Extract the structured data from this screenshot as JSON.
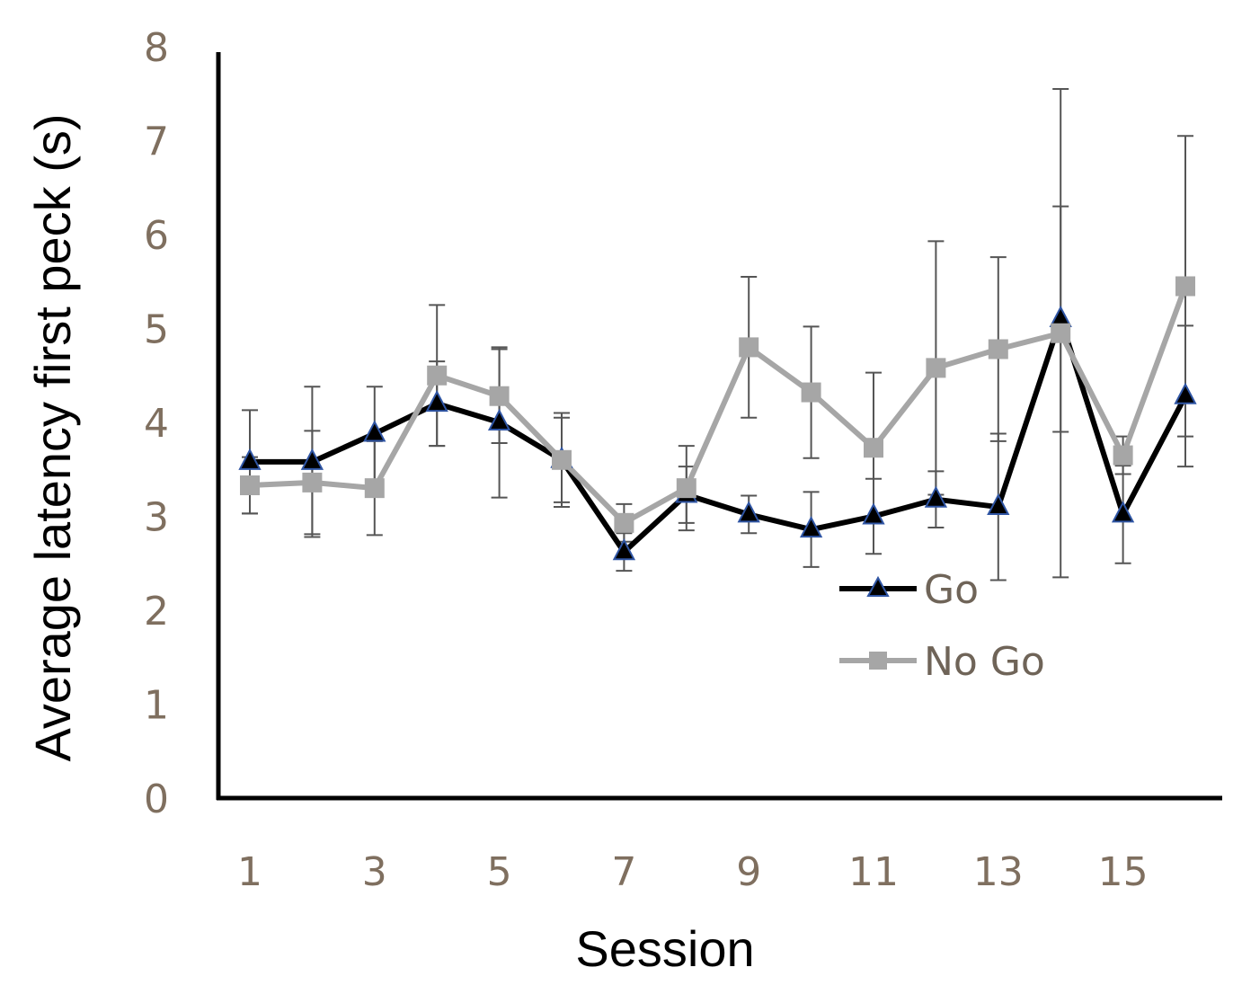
{
  "chart_data": {
    "type": "line",
    "xlabel": "Session",
    "ylabel": "Average latency first peck (s)",
    "ylim": [
      0,
      8
    ],
    "yticks": [
      0,
      1,
      2,
      3,
      4,
      5,
      6,
      7,
      8
    ],
    "x": [
      1,
      2,
      3,
      4,
      5,
      6,
      7,
      8,
      9,
      10,
      11,
      12,
      13,
      14,
      15,
      16
    ],
    "xtick_labels": [
      "1",
      "3",
      "5",
      "7",
      "9",
      "11",
      "13",
      "15"
    ],
    "grid": false,
    "legend_position": "bottom-center",
    "series": [
      {
        "name": "Go",
        "color": "#000000",
        "marker": "triangle",
        "marker_color": "#000000",
        "marker_edge": "#2f55a4",
        "values": [
          3.58,
          3.58,
          3.88,
          4.2,
          4.0,
          3.6,
          2.62,
          3.23,
          3.02,
          2.86,
          3.0,
          3.18,
          3.1,
          5.1,
          3.02,
          4.28
        ],
        "error": [
          0.55,
          0.8,
          0.5,
          0.45,
          0.8,
          0.45,
          0.2,
          0.3,
          0.2,
          0.4,
          0.4,
          0.3,
          0.78,
          1.2,
          0.52,
          0.75
        ]
      },
      {
        "name": "No Go",
        "color": "#a6a6a6",
        "marker": "square",
        "marker_color": "#a6a6a6",
        "values": [
          3.33,
          3.36,
          3.3,
          4.5,
          4.28,
          3.6,
          2.93,
          3.3,
          4.8,
          4.32,
          3.73,
          4.58,
          4.78,
          4.95,
          3.65,
          5.45
        ],
        "error": [
          0.3,
          0.55,
          0.5,
          0.75,
          0.5,
          0.5,
          0.2,
          0.45,
          0.75,
          0.7,
          0.8,
          1.35,
          0.98,
          2.6,
          0.2,
          1.6
        ]
      }
    ]
  }
}
